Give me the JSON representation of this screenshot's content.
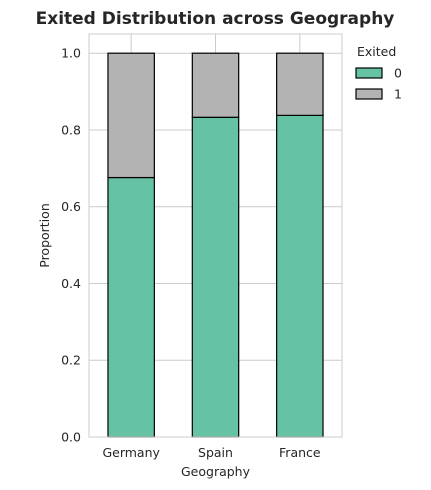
{
  "chart_data": {
    "type": "bar",
    "stacked": true,
    "title": "Exited Distribution across Geography",
    "xlabel": "Geography",
    "ylabel": "Proportion",
    "categories": [
      "Germany",
      "Spain",
      "France"
    ],
    "series": [
      {
        "name": "0",
        "values": [
          0.676,
          0.833,
          0.838
        ],
        "color": "#66c2a5"
      },
      {
        "name": "1",
        "values": [
          0.324,
          0.167,
          0.162
        ],
        "color": "#b3b3b3"
      }
    ],
    "ylim": [
      0,
      1.05
    ],
    "yticks": [
      0.0,
      0.2,
      0.4,
      0.6,
      0.8,
      1.0
    ],
    "ytick_labels": [
      "0.0",
      "0.2",
      "0.4",
      "0.6",
      "0.8",
      "1.0"
    ],
    "grid": true,
    "legend": {
      "title": "Exited",
      "placement": "outside-top-right"
    }
  }
}
